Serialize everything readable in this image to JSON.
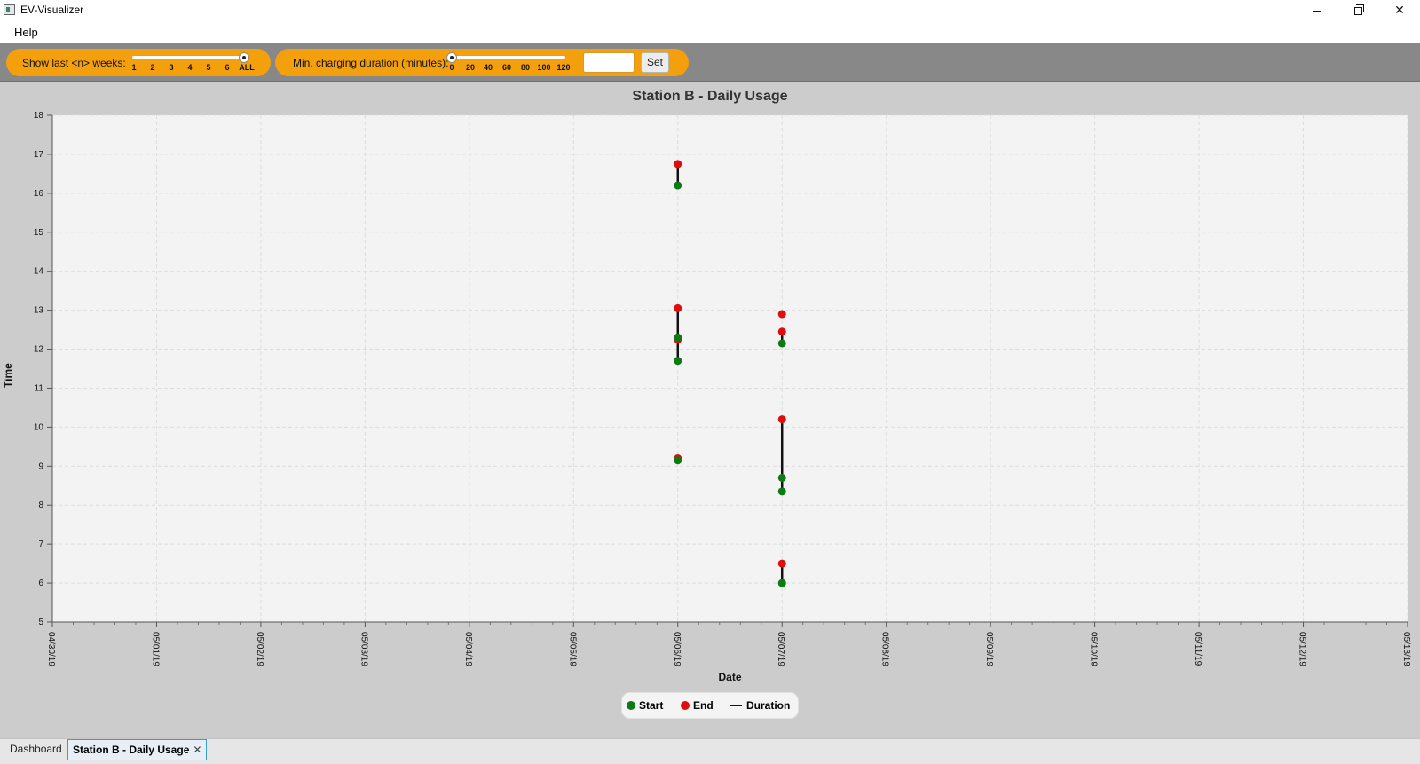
{
  "window": {
    "title": "EV-Visualizer",
    "minimize_glyph": "—",
    "maximize_glyph": "❐",
    "close_glyph": "✕"
  },
  "menu": {
    "items": [
      "Help"
    ]
  },
  "toolbar": {
    "weeks": {
      "label": "Show last <n> weeks:",
      "ticks": [
        "1",
        "2",
        "3",
        "4",
        "5",
        "6",
        "ALL"
      ],
      "selected": "ALL"
    },
    "duration": {
      "label": "Min. charging duration (minutes):",
      "ticks": [
        "0",
        "20",
        "40",
        "60",
        "80",
        "100",
        "120"
      ],
      "selected": "0",
      "input_value": "",
      "set_label": "Set"
    },
    "accent_color": "#f4a00d"
  },
  "chart_data": {
    "type": "scatter",
    "title": "Station B - Daily Usage",
    "xlabel": "Date",
    "ylabel": "Time",
    "x_categories": [
      "04/30/19",
      "05/01/19",
      "05/02/19",
      "05/03/19",
      "05/04/19",
      "05/05/19",
      "05/06/19",
      "05/07/19",
      "05/08/19",
      "05/09/19",
      "05/10/19",
      "05/11/19",
      "05/12/19",
      "05/13/19"
    ],
    "ylim": [
      5,
      18
    ],
    "y_ticks": [
      5,
      6,
      7,
      8,
      9,
      10,
      11,
      12,
      13,
      14,
      15,
      16,
      17,
      18
    ],
    "grid": true,
    "legend": "bottom-center",
    "colors": {
      "start": "#0d7a12",
      "end": "#e00d0d",
      "duration": "#111111"
    },
    "series": [
      {
        "name": "Start",
        "points": [
          {
            "x": "05/06/19",
            "y": 16.2
          },
          {
            "x": "05/06/19",
            "y": 12.3
          },
          {
            "x": "05/06/19",
            "y": 11.7
          },
          {
            "x": "05/06/19",
            "y": 9.15
          },
          {
            "x": "05/07/19",
            "y": 12.15
          },
          {
            "x": "05/07/19",
            "y": 8.7
          },
          {
            "x": "05/07/19",
            "y": 8.35
          },
          {
            "x": "05/07/19",
            "y": 6.0
          }
        ]
      },
      {
        "name": "End",
        "points": [
          {
            "x": "05/06/19",
            "y": 16.75
          },
          {
            "x": "05/06/19",
            "y": 13.05
          },
          {
            "x": "05/06/19",
            "y": 12.25
          },
          {
            "x": "05/06/19",
            "y": 9.2
          },
          {
            "x": "05/07/19",
            "y": 12.9
          },
          {
            "x": "05/07/19",
            "y": 12.45
          },
          {
            "x": "05/07/19",
            "y": 10.2
          },
          {
            "x": "05/07/19",
            "y": 6.5
          }
        ]
      },
      {
        "name": "Duration",
        "segments": [
          {
            "x": "05/06/19",
            "y0": 16.2,
            "y1": 16.75
          },
          {
            "x": "05/06/19",
            "y0": 12.3,
            "y1": 13.05
          },
          {
            "x": "05/06/19",
            "y0": 11.7,
            "y1": 12.25
          },
          {
            "x": "05/06/19",
            "y0": 9.15,
            "y1": 9.2
          },
          {
            "x": "05/07/19",
            "y0": 12.15,
            "y1": 12.45
          },
          {
            "x": "05/07/19",
            "y0": 8.35,
            "y1": 10.2
          },
          {
            "x": "05/07/19",
            "y0": 6.0,
            "y1": 6.5
          },
          {
            "x": "05/07/19",
            "y0": 12.9,
            "y1": 12.9
          }
        ]
      }
    ]
  },
  "legend": {
    "start": "Start",
    "end": "End",
    "duration": "Duration"
  },
  "tabs": [
    {
      "label": "Dashboard",
      "active": false
    },
    {
      "label": "Station B - Daily Usage",
      "active": true,
      "close_glyph": "✕"
    }
  ]
}
